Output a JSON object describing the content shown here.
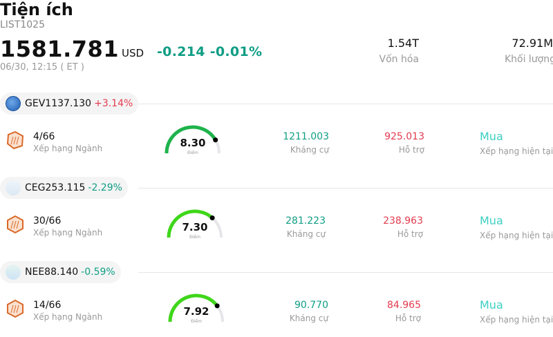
{
  "header": {
    "title": "Tiện ích",
    "code": "LIST1025",
    "price": "1581.781",
    "currency": "USD",
    "change": "-0.214 -0.01%",
    "timestamp": "06/30, 12:15  ( ET )",
    "stats": [
      {
        "value": "1.54T",
        "label": "Vốn hóa"
      },
      {
        "value": "72.91M",
        "label": "Khối lượng"
      }
    ]
  },
  "accent_colors": {
    "up": "#e33b4f",
    "down": "#0f9d84",
    "rating": "#3ccfc3",
    "gauge": "#22c55e"
  },
  "stocks": [
    {
      "ticker": "GEV",
      "price": "1137.130",
      "pct": "+3.14%",
      "direction": "up",
      "logo_icon": "ge-logo-icon",
      "rank": "4/66",
      "rank_label": "Xếp hạng Ngành",
      "score": "8.30",
      "score_caption": "Điểm",
      "score_fraction": 0.83,
      "resistance": "1211.003",
      "resistance_label": "Kháng cự",
      "support": "925.013",
      "support_label": "Hỗ trợ",
      "rating": "Mua",
      "rating_label": "Xếp hạng hiện tại"
    },
    {
      "ticker": "CEG",
      "price": "253.115",
      "pct": "-2.29%",
      "direction": "down",
      "logo_icon": "constellation-logo-icon",
      "rank": "30/66",
      "rank_label": "Xếp hạng Ngành",
      "score": "7.30",
      "score_caption": "Điểm",
      "score_fraction": 0.73,
      "resistance": "281.223",
      "resistance_label": "Kháng cự",
      "support": "238.963",
      "support_label": "Hỗ trợ",
      "rating": "Mua",
      "rating_label": "Xếp hạng hiện tại"
    },
    {
      "ticker": "NEE",
      "price": "88.140",
      "pct": "-0.59%",
      "direction": "down",
      "logo_icon": "nextera-logo-icon",
      "rank": "14/66",
      "rank_label": "Xếp hạng Ngành",
      "score": "7.92",
      "score_caption": "Điểm",
      "score_fraction": 0.792,
      "resistance": "90.770",
      "resistance_label": "Kháng cự",
      "support": "84.965",
      "support_label": "Hỗ trợ",
      "rating": "Mua",
      "rating_label": "Xếp hạng hiện tại"
    }
  ]
}
